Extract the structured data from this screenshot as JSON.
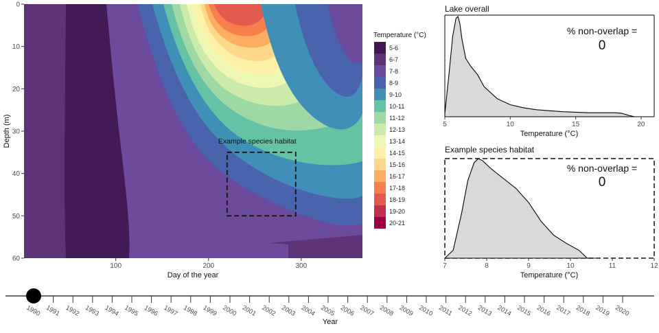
{
  "chart_data": [
    {
      "type": "heatmap",
      "xlabel": "Day of the year",
      "ylabel": "Depth (m)",
      "xlim": [
        1,
        366
      ],
      "ylim": [
        60,
        0
      ],
      "x_ticks": [
        100,
        200,
        300
      ],
      "y_ticks": [
        0,
        10,
        20,
        30,
        40,
        50,
        60
      ],
      "legend": {
        "title": "Temperature (°C)",
        "placement": "right",
        "entries": [
          {
            "label": "5-6",
            "color": "#3f1851"
          },
          {
            "label": "6-7",
            "color": "#5d3378"
          },
          {
            "label": "7-8",
            "color": "#6c4a9c"
          },
          {
            "label": "8-9",
            "color": "#4a63ad"
          },
          {
            "label": "9-10",
            "color": "#3f8fb6"
          },
          {
            "label": "10-11",
            "color": "#66c2a5"
          },
          {
            "label": "11-12",
            "color": "#9ed8a4"
          },
          {
            "label": "12-13",
            "color": "#ccebab"
          },
          {
            "label": "13-14",
            "color": "#eef7b2"
          },
          {
            "label": "14-15",
            "color": "#fff1a8"
          },
          {
            "label": "15-16",
            "color": "#fed98b"
          },
          {
            "label": "16-17",
            "color": "#fdae61"
          },
          {
            "label": "17-18",
            "color": "#f67f4b"
          },
          {
            "label": "18-19",
            "color": "#e35b4e"
          },
          {
            "label": "19-20",
            "color": "#c62f4b"
          },
          {
            "label": "20-21",
            "color": "#9e0142"
          }
        ]
      },
      "annotation": {
        "text": "Example species habitat",
        "x_range": [
          220,
          294
        ],
        "depth_range": [
          35,
          50
        ]
      }
    },
    {
      "type": "area",
      "title": "Lake overall",
      "xlabel": "Temperature (°C)",
      "xlim": [
        5,
        21
      ],
      "x_ticks": [
        5,
        10,
        15,
        20
      ],
      "annotation_title": "% non-overlap =",
      "annotation_value": "0",
      "x": [
        5.0,
        5.3,
        5.6,
        5.85,
        6.0,
        6.15,
        6.3,
        6.6,
        7.0,
        7.5,
        8.0,
        9.0,
        10.0,
        11.0,
        12.0,
        14.0,
        16.0,
        18.0,
        18.5,
        19.0,
        19.5,
        20.0
      ],
      "density": [
        0.03,
        0.4,
        0.8,
        0.98,
        1.0,
        0.93,
        0.78,
        0.58,
        0.5,
        0.42,
        0.3,
        0.18,
        0.12,
        0.09,
        0.07,
        0.05,
        0.04,
        0.04,
        0.035,
        0.015,
        0.0,
        0.0
      ]
    },
    {
      "type": "area",
      "title": "Example species habitat",
      "xlabel": "Temperature (°C)",
      "xlim": [
        7,
        12
      ],
      "x_ticks": [
        7,
        8,
        9,
        10,
        11,
        12
      ],
      "annotation_title": "% non-overlap =",
      "annotation_value": "0",
      "x": [
        7.0,
        7.2,
        7.4,
        7.55,
        7.7,
        7.8,
        7.9,
        8.1,
        8.4,
        8.7,
        9.0,
        9.3,
        9.6,
        9.9,
        10.2,
        10.4,
        10.6
      ],
      "density": [
        0.0,
        0.08,
        0.45,
        0.78,
        0.96,
        1.0,
        0.98,
        0.9,
        0.8,
        0.7,
        0.56,
        0.37,
        0.23,
        0.15,
        0.08,
        0.0,
        0.0
      ]
    }
  ],
  "timeline": {
    "xlabel": "Year",
    "selected": "1990",
    "years": [
      "1990",
      "1991",
      "1992",
      "1993",
      "1994",
      "1995",
      "1996",
      "1997",
      "1998",
      "1999",
      "2000",
      "2001",
      "2002",
      "2003",
      "2004",
      "2005",
      "2006",
      "2007",
      "2008",
      "2009",
      "2010",
      "2011",
      "2012",
      "2013",
      "2014",
      "2015",
      "2016",
      "2017",
      "2018",
      "2019",
      "2020"
    ]
  }
}
